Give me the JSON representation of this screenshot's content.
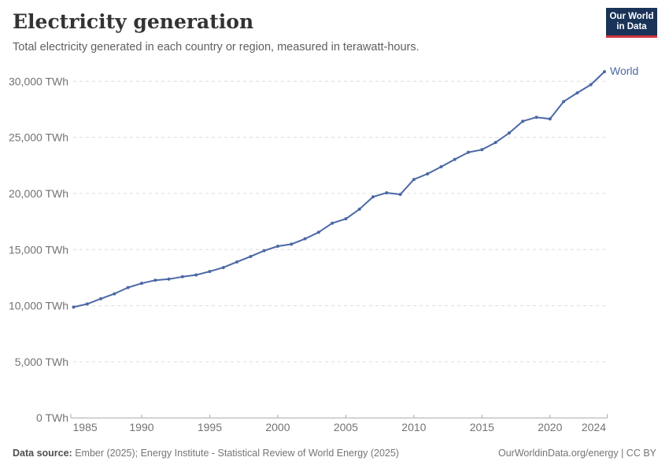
{
  "header": {
    "title": "Electricity generation",
    "subtitle": "Total electricity generated in each country or region, measured in terawatt-hours.",
    "logo": {
      "line1": "Our World",
      "line2": "in Data"
    }
  },
  "chart_data": {
    "type": "line",
    "title": "Electricity generation",
    "unit": "TWh",
    "grid": "horizontal-dashed",
    "legend_position": "end-of-line",
    "xlim": [
      1985,
      2024
    ],
    "ylim": [
      0,
      30000
    ],
    "x": [
      1985,
      1986,
      1987,
      1988,
      1989,
      1990,
      1991,
      1992,
      1993,
      1994,
      1995,
      1996,
      1997,
      1998,
      1999,
      2000,
      2001,
      2002,
      2003,
      2004,
      2005,
      2006,
      2007,
      2008,
      2009,
      2010,
      2011,
      2012,
      2013,
      2014,
      2015,
      2016,
      2017,
      2018,
      2019,
      2020,
      2021,
      2022,
      2023,
      2024
    ],
    "series": [
      {
        "name": "World",
        "color": "#4b68a5",
        "values": [
          9870,
          10150,
          10620,
          11060,
          11620,
          11990,
          12270,
          12370,
          12580,
          12740,
          13050,
          13400,
          13900,
          14380,
          14900,
          15300,
          15480,
          15960,
          16540,
          17350,
          17740,
          18600,
          19700,
          20060,
          19920,
          21250,
          21750,
          22380,
          23040,
          23670,
          23900,
          24540,
          25390,
          26440,
          26790,
          26650,
          28190,
          28960,
          29700,
          30850
        ]
      }
    ],
    "y_ticks": [
      0,
      5000,
      10000,
      15000,
      20000,
      25000,
      30000
    ],
    "y_tick_labels": [
      "0 TWh",
      "5,000 TWh",
      "10,000 TWh",
      "15,000 TWh",
      "20,000 TWh",
      "25,000 TWh",
      "30,000 TWh"
    ],
    "x_ticks": [
      1985,
      1990,
      1995,
      2000,
      2005,
      2010,
      2015,
      2020,
      2024
    ],
    "x_tick_labels": [
      "1985",
      "1990",
      "1995",
      "2000",
      "2005",
      "2010",
      "2015",
      "2020",
      "2024"
    ],
    "end_label": "World",
    "colors": {
      "gridline": "#dcdcdc",
      "axis": "#a8a8a8",
      "tick_text": "#737373"
    }
  },
  "footer": {
    "source_label": "Data source:",
    "source_text": " Ember (2025); Energy Institute - Statistical Review of World Energy (2025)",
    "credit": "OurWorldinData.org/energy | CC BY"
  }
}
